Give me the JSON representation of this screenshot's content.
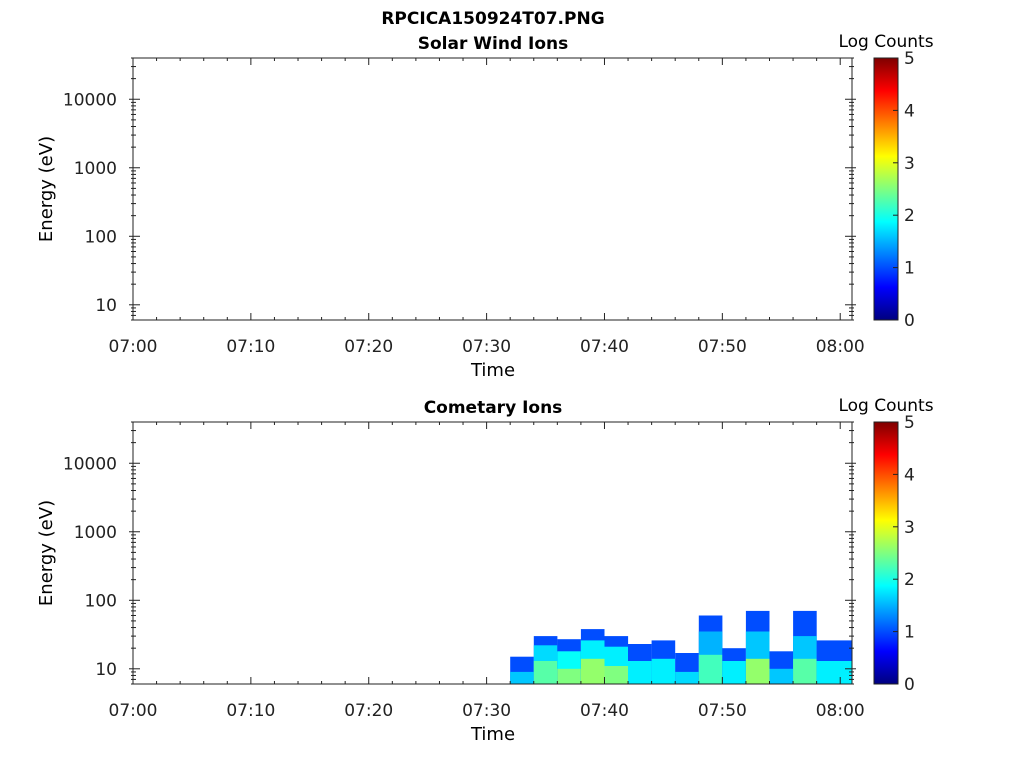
{
  "figure": {
    "title": "RPCICA150924T07.PNG"
  },
  "chart_data": [
    {
      "type": "heatmap",
      "title": "Solar Wind Ions",
      "xlabel": "Time",
      "ylabel": "Energy (eV)",
      "x_ticks": [
        "07:00",
        "07:10",
        "07:20",
        "07:30",
        "07:40",
        "07:50",
        "08:00"
      ],
      "xlim": [
        "07:00",
        "08:01"
      ],
      "y_scale": "log",
      "y_ticks": [
        10,
        100,
        1000,
        10000
      ],
      "y_tick_labels": [
        "10",
        "100",
        "1000",
        "10000"
      ],
      "ylim": [
        6,
        40000
      ],
      "colorbar": {
        "label": "Log Counts",
        "range": [
          0,
          5
        ],
        "ticks": [
          "0",
          "1",
          "2",
          "3",
          "4",
          "5"
        ],
        "colormap": "jet"
      },
      "cells": []
    },
    {
      "type": "heatmap",
      "title": "Cometary Ions",
      "xlabel": "Time",
      "ylabel": "Energy (eV)",
      "x_ticks": [
        "07:00",
        "07:10",
        "07:20",
        "07:30",
        "07:40",
        "07:50",
        "08:00"
      ],
      "xlim": [
        "07:00",
        "08:01"
      ],
      "y_scale": "log",
      "y_ticks": [
        10,
        100,
        1000,
        10000
      ],
      "y_tick_labels": [
        "10",
        "100",
        "1000",
        "10000"
      ],
      "ylim": [
        6,
        40000
      ],
      "colorbar": {
        "label": "Log Counts",
        "range": [
          0,
          5
        ],
        "ticks": [
          "0",
          "1",
          "2",
          "3",
          "4",
          "5"
        ],
        "colormap": "jet"
      },
      "cells": [
        {
          "t0": "07:32",
          "t1": "07:34",
          "top": 15,
          "level": 1.0
        },
        {
          "t0": "07:32",
          "t1": "07:34",
          "top": 9,
          "level": 1.6
        },
        {
          "t0": "07:34",
          "t1": "07:36",
          "top": 30,
          "level": 1.0
        },
        {
          "t0": "07:34",
          "t1": "07:36",
          "top": 22,
          "level": 1.7
        },
        {
          "t0": "07:34",
          "t1": "07:36",
          "top": 13,
          "level": 2.3
        },
        {
          "t0": "07:36",
          "t1": "07:38",
          "top": 27,
          "level": 1.0
        },
        {
          "t0": "07:36",
          "t1": "07:38",
          "top": 18,
          "level": 1.9
        },
        {
          "t0": "07:36",
          "t1": "07:38",
          "top": 10,
          "level": 2.5
        },
        {
          "t0": "07:38",
          "t1": "07:40",
          "top": 38,
          "level": 1.0
        },
        {
          "t0": "07:38",
          "t1": "07:40",
          "top": 26,
          "level": 1.8
        },
        {
          "t0": "07:38",
          "t1": "07:40",
          "top": 14,
          "level": 2.6
        },
        {
          "t0": "07:40",
          "t1": "07:42",
          "top": 30,
          "level": 1.0
        },
        {
          "t0": "07:40",
          "t1": "07:42",
          "top": 21,
          "level": 1.8
        },
        {
          "t0": "07:40",
          "t1": "07:42",
          "top": 11,
          "level": 2.5
        },
        {
          "t0": "07:42",
          "t1": "07:44",
          "top": 23,
          "level": 1.0
        },
        {
          "t0": "07:42",
          "t1": "07:44",
          "top": 13,
          "level": 1.8
        },
        {
          "t0": "07:44",
          "t1": "07:46",
          "top": 26,
          "level": 1.0
        },
        {
          "t0": "07:44",
          "t1": "07:46",
          "top": 14,
          "level": 1.8
        },
        {
          "t0": "07:46",
          "t1": "07:48",
          "top": 17,
          "level": 1.0
        },
        {
          "t0": "07:46",
          "t1": "07:48",
          "top": 9,
          "level": 1.7
        },
        {
          "t0": "07:48",
          "t1": "07:50",
          "top": 60,
          "level": 1.0
        },
        {
          "t0": "07:48",
          "t1": "07:50",
          "top": 35,
          "level": 1.5
        },
        {
          "t0": "07:48",
          "t1": "07:50",
          "top": 16,
          "level": 2.2
        },
        {
          "t0": "07:50",
          "t1": "07:52",
          "top": 20,
          "level": 1.0
        },
        {
          "t0": "07:50",
          "t1": "07:52",
          "top": 13,
          "level": 1.8
        },
        {
          "t0": "07:52",
          "t1": "07:54",
          "top": 70,
          "level": 1.0
        },
        {
          "t0": "07:52",
          "t1": "07:54",
          "top": 35,
          "level": 1.6
        },
        {
          "t0": "07:52",
          "t1": "07:54",
          "top": 14,
          "level": 2.6
        },
        {
          "t0": "07:54",
          "t1": "07:56",
          "top": 18,
          "level": 1.0
        },
        {
          "t0": "07:54",
          "t1": "07:56",
          "top": 10,
          "level": 1.6
        },
        {
          "t0": "07:56",
          "t1": "07:58",
          "top": 70,
          "level": 1.0
        },
        {
          "t0": "07:56",
          "t1": "07:58",
          "top": 30,
          "level": 1.6
        },
        {
          "t0": "07:56",
          "t1": "07:58",
          "top": 14,
          "level": 2.3
        },
        {
          "t0": "07:58",
          "t1": "08:01",
          "top": 26,
          "level": 1.0
        },
        {
          "t0": "07:58",
          "t1": "08:01",
          "top": 13,
          "level": 1.8
        }
      ]
    }
  ]
}
